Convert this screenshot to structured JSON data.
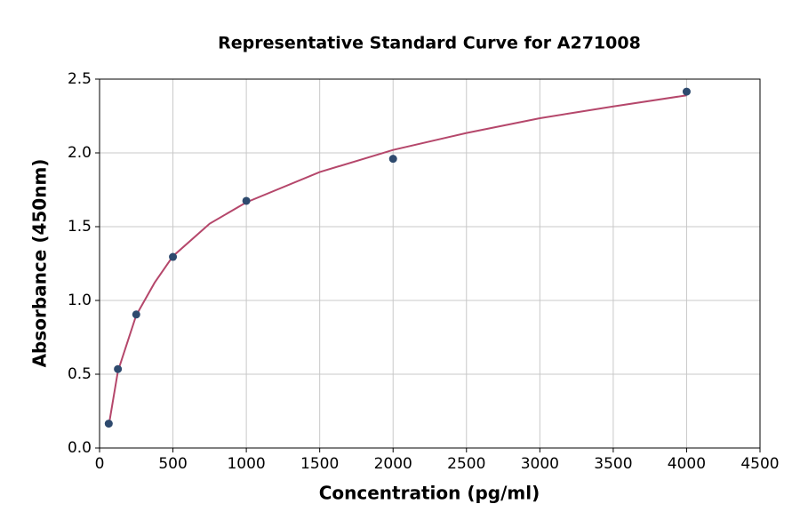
{
  "chart_data": {
    "type": "scatter",
    "title": "Representative Standard Curve for A271008",
    "x_label": "Concentration (pg/ml)",
    "y_label": "Absorbance (450nm)",
    "xlim": [
      0,
      4500
    ],
    "ylim": [
      0,
      2.5
    ],
    "xticks": [
      0,
      500,
      1000,
      1500,
      2000,
      2500,
      3000,
      3500,
      4000,
      4500
    ],
    "yticks": [
      {
        "value": 0,
        "label": "0.0"
      },
      0.5,
      {
        "value": 1,
        "label": "1.0"
      },
      1.5,
      {
        "value": 2,
        "label": "2.0"
      },
      2.5
    ],
    "grid": true,
    "series": [
      {
        "type": "line",
        "color": "#b5476b",
        "x": [
          62.5,
          125,
          250,
          375,
          500,
          750,
          1000,
          1500,
          2000,
          2500,
          3000,
          3500,
          4000
        ],
        "values": [
          0.15,
          0.52,
          0.9,
          1.12,
          1.3,
          1.52,
          1.665,
          1.87,
          2.02,
          2.135,
          2.235,
          2.315,
          2.39
        ]
      },
      {
        "type": "scatter",
        "color": "#2e4a6e",
        "x": [
          62.5,
          125,
          250,
          500,
          1000,
          2000,
          4000
        ],
        "values": [
          0.165,
          0.535,
          0.905,
          1.295,
          1.675,
          1.96,
          2.415
        ]
      }
    ]
  }
}
